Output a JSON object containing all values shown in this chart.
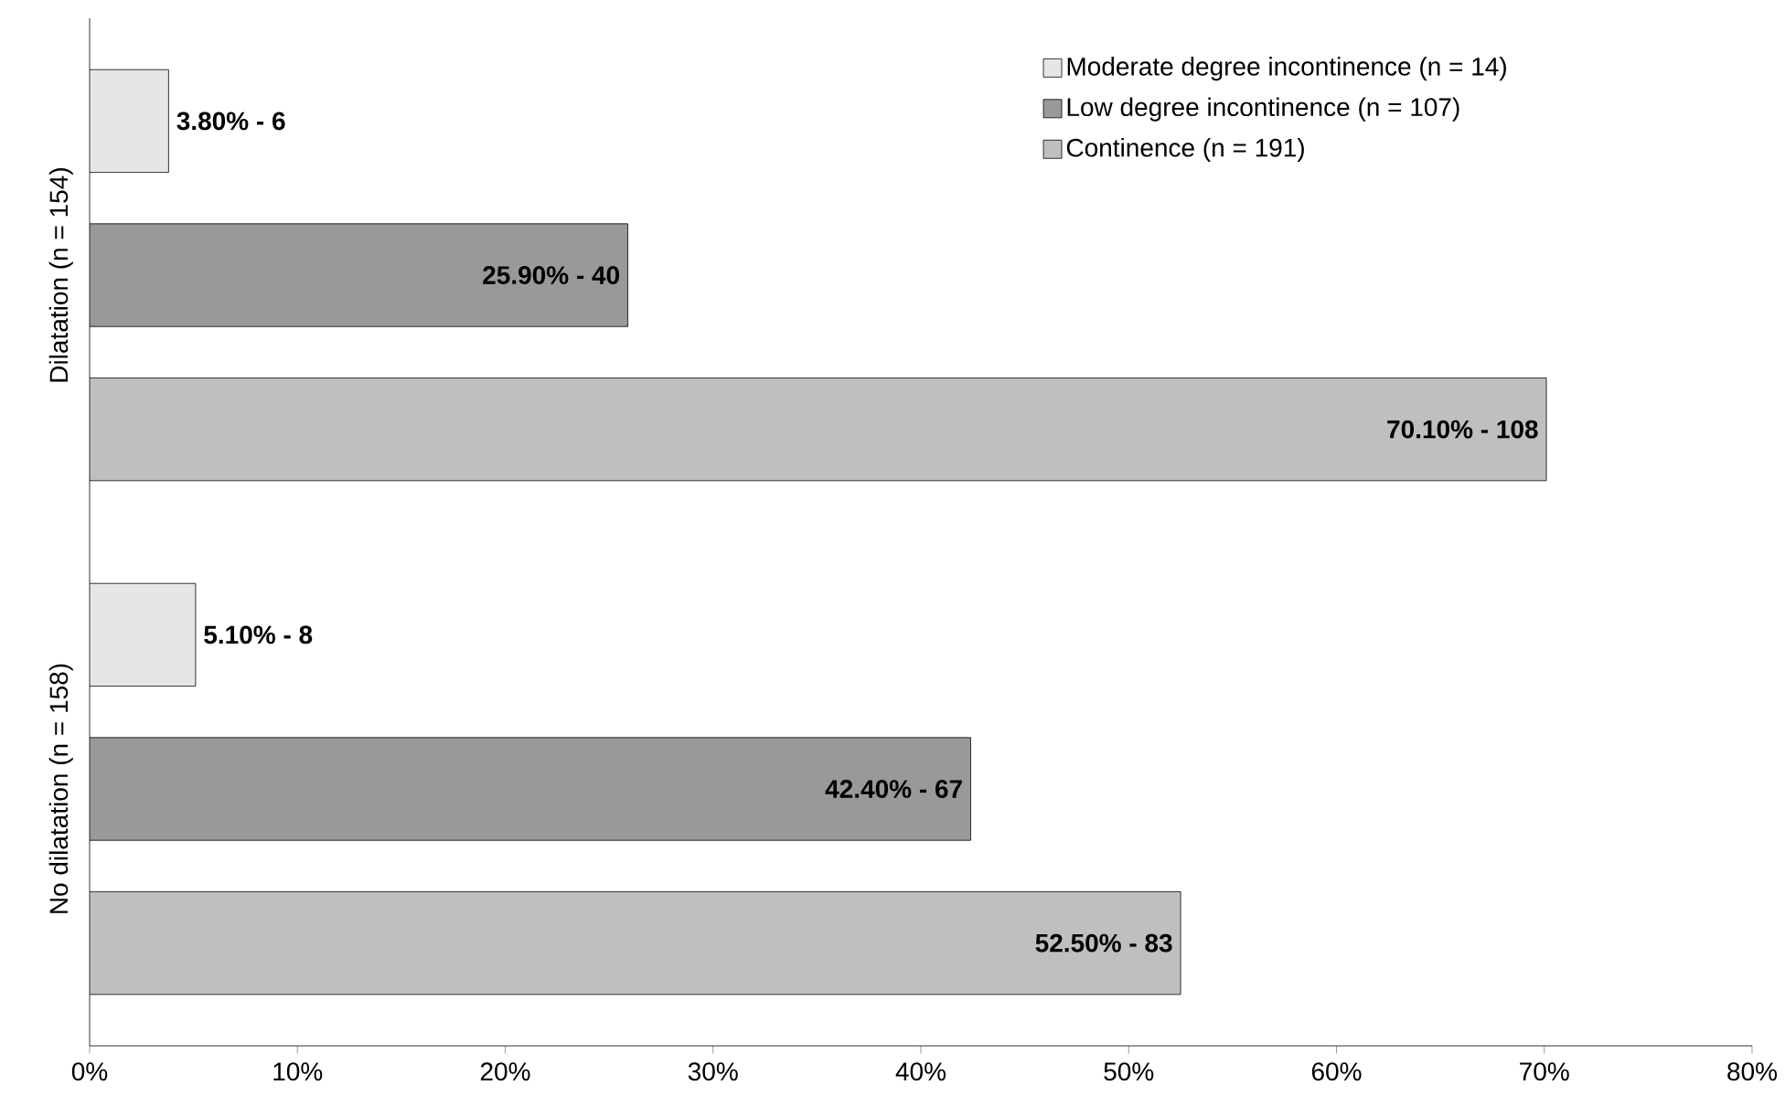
{
  "chart_data": {
    "type": "bar",
    "orientation": "horizontal",
    "categories": [
      "Dilatation (n = 154)",
      "No dilatation (n = 158)"
    ],
    "series": [
      {
        "name": "Moderate degree incontinence (n = 14)",
        "color": "#e6e6e6",
        "values": [
          3.8,
          5.1
        ],
        "value_labels": [
          "3.80% - 6",
          "5.10% - 8"
        ]
      },
      {
        "name": "Low degree incontinence (n = 107)",
        "color": "#999999",
        "values": [
          25.9,
          42.4
        ],
        "value_labels": [
          "25.90% - 40",
          "42.40% - 67"
        ]
      },
      {
        "name": "Continence (n = 191)",
        "color": "#bfbfbf",
        "values": [
          70.1,
          52.5
        ],
        "value_labels": [
          "70.10% - 108",
          "52.50% - 83"
        ]
      }
    ],
    "xlim": [
      0,
      80
    ],
    "xticks": [
      {
        "value": 0,
        "label": "0%"
      },
      {
        "value": 10,
        "label": "10%"
      },
      {
        "value": 20,
        "label": "20%"
      },
      {
        "value": 30,
        "label": "30%"
      },
      {
        "value": 40,
        "label": "40%"
      },
      {
        "value": 50,
        "label": "50%"
      },
      {
        "value": 60,
        "label": "60%"
      },
      {
        "value": 70,
        "label": "70%"
      },
      {
        "value": 80,
        "label": "80%"
      }
    ],
    "legend": "top right",
    "grid": false
  }
}
